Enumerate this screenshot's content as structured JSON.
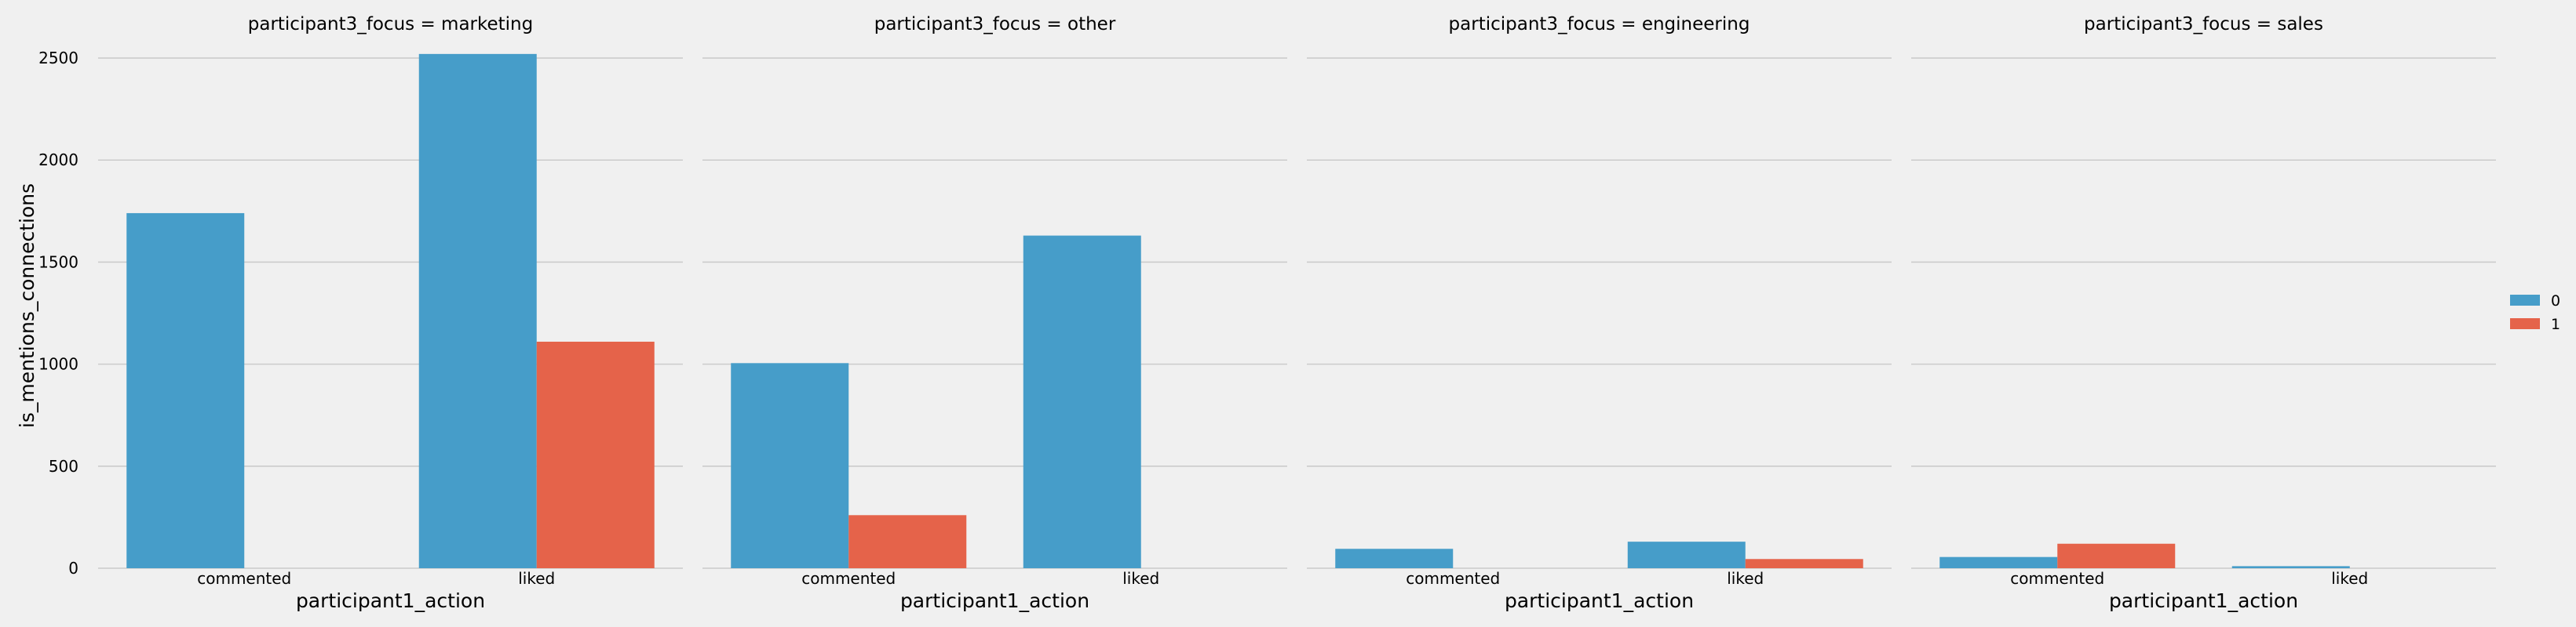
{
  "chart_data": {
    "type": "bar",
    "facet_variable": "participant3_focus",
    "xlabel": "participant1_action",
    "ylabel": "is_mentions_connections",
    "ylim": [
      0,
      2650
    ],
    "yticks": [
      0,
      500,
      1000,
      1500,
      2000,
      2500
    ],
    "grid": true,
    "legend": {
      "placement": "right",
      "entries": [
        "0",
        "1"
      ]
    },
    "colors": {
      "0": "#469dc9",
      "1": "#e5634a",
      "grid": "#cbcbcb",
      "background": "#f0f0f0"
    },
    "categories": [
      "commented",
      "liked"
    ],
    "panels": [
      {
        "title": "participant3_focus = marketing",
        "series": [
          {
            "name": "0",
            "values": [
              1740,
              2520
            ]
          },
          {
            "name": "1",
            "values": [
              0,
              1110
            ]
          }
        ]
      },
      {
        "title": "participant3_focus = other",
        "series": [
          {
            "name": "0",
            "values": [
              1005,
              1630
            ]
          },
          {
            "name": "1",
            "values": [
              260,
              0
            ]
          }
        ]
      },
      {
        "title": "participant3_focus = engineering",
        "series": [
          {
            "name": "0",
            "values": [
              95,
              130
            ]
          },
          {
            "name": "1",
            "values": [
              0,
              45
            ]
          }
        ]
      },
      {
        "title": "participant3_focus = sales",
        "series": [
          {
            "name": "0",
            "values": [
              55,
              10
            ]
          },
          {
            "name": "1",
            "values": [
              120,
              0
            ]
          }
        ]
      }
    ]
  }
}
